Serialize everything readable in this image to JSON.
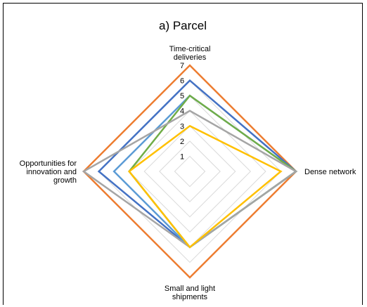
{
  "chart_data": {
    "type": "radar",
    "title": "a) Parcel",
    "axes": [
      [
        "Time-critical",
        "deliveries"
      ],
      [
        "Dense network"
      ],
      [
        "Small and light",
        "shipments"
      ],
      [
        "Opportunities for",
        "innovation and",
        "growth"
      ]
    ],
    "rmin": 1,
    "rmax": 7,
    "ticks": [
      "1",
      "2",
      "3",
      "4",
      "5",
      "6",
      "7"
    ],
    "grid": true,
    "legend": "none",
    "series": [
      {
        "color": "#ED7D31",
        "values": [
          7,
          7,
          7,
          7
        ]
      },
      {
        "color": "#4472C4",
        "values": [
          6,
          7,
          5,
          6
        ]
      },
      {
        "color": "#5B9BD5",
        "values": [
          5,
          7,
          5,
          5
        ]
      },
      {
        "color": "#70AD47",
        "values": [
          5,
          7,
          5,
          4
        ]
      },
      {
        "color": "#A5A5A5",
        "values": [
          4,
          7,
          5,
          7
        ]
      },
      {
        "color": "#FFC000",
        "values": [
          3,
          6,
          5,
          4
        ]
      }
    ]
  }
}
